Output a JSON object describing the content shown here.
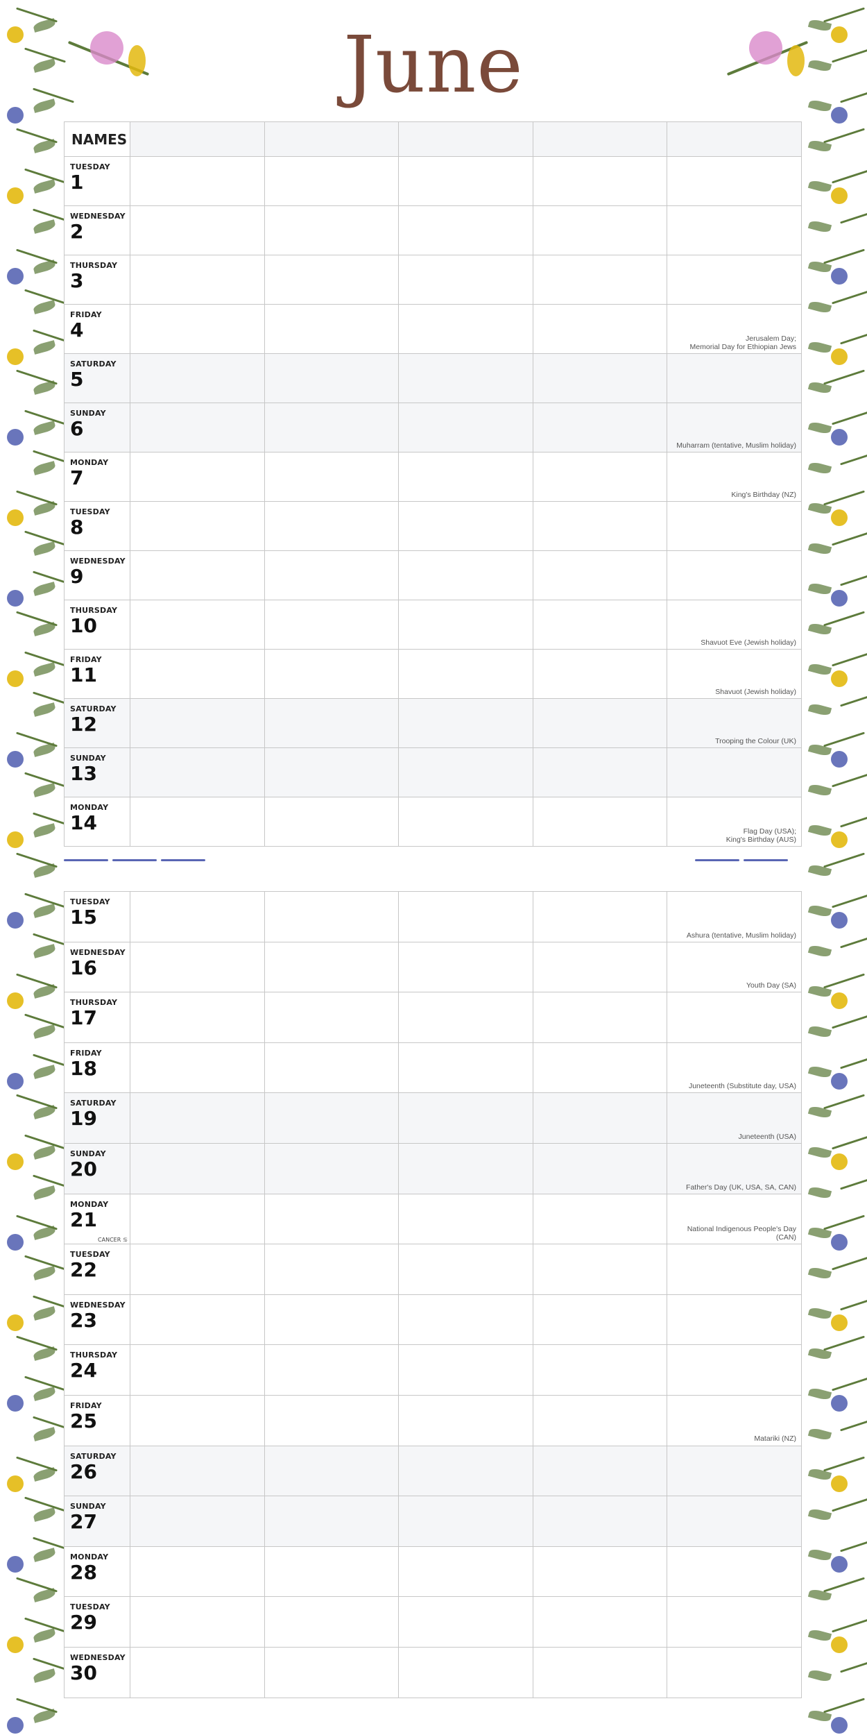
{
  "calendar": {
    "month": "June",
    "names_header": "NAMES"
  },
  "days": [
    {
      "weekday": "TUESDAY",
      "day": "1",
      "event": "",
      "weekend": false
    },
    {
      "weekday": "WEDNESDAY",
      "day": "2",
      "event": "",
      "weekend": false
    },
    {
      "weekday": "THURSDAY",
      "day": "3",
      "event": "",
      "weekend": false
    },
    {
      "weekday": "FRIDAY",
      "day": "4",
      "event": "Jerusalem Day;\nMemorial Day for Ethiopian Jews",
      "weekend": false
    },
    {
      "weekday": "SATURDAY",
      "day": "5",
      "event": "",
      "weekend": true
    },
    {
      "weekday": "SUNDAY",
      "day": "6",
      "event": "Muharram (tentative, Muslim holiday)",
      "weekend": true
    },
    {
      "weekday": "MONDAY",
      "day": "7",
      "event": "King's Birthday (NZ)",
      "weekend": false
    },
    {
      "weekday": "TUESDAY",
      "day": "8",
      "event": "",
      "weekend": false
    },
    {
      "weekday": "WEDNESDAY",
      "day": "9",
      "event": "",
      "weekend": false
    },
    {
      "weekday": "THURSDAY",
      "day": "10",
      "event": "Shavuot Eve (Jewish holiday)",
      "weekend": false
    },
    {
      "weekday": "FRIDAY",
      "day": "11",
      "event": "Shavuot (Jewish holiday)",
      "weekend": false
    },
    {
      "weekday": "SATURDAY",
      "day": "12",
      "event": "Trooping the Colour (UK)",
      "weekend": true
    },
    {
      "weekday": "SUNDAY",
      "day": "13",
      "event": "",
      "weekend": true
    },
    {
      "weekday": "MONDAY",
      "day": "14",
      "event": "Flag Day (USA);\nKing's Birthday (AUS)",
      "weekend": false
    },
    {
      "weekday": "TUESDAY",
      "day": "15",
      "event": "Ashura (tentative, Muslim holiday)",
      "weekend": false
    },
    {
      "weekday": "WEDNESDAY",
      "day": "16",
      "event": "Youth Day (SA)",
      "weekend": false
    },
    {
      "weekday": "THURSDAY",
      "day": "17",
      "event": "",
      "weekend": false
    },
    {
      "weekday": "FRIDAY",
      "day": "18",
      "event": "Juneteenth (Substitute day, USA)",
      "weekend": false
    },
    {
      "weekday": "SATURDAY",
      "day": "19",
      "event": "Juneteenth (USA)",
      "weekend": true
    },
    {
      "weekday": "SUNDAY",
      "day": "20",
      "event": "Father's Day (UK, USA, SA, CAN)",
      "weekend": true
    },
    {
      "weekday": "MONDAY",
      "day": "21",
      "event": "National Indigenous People's Day (CAN)",
      "weekend": false,
      "zodiac": "CANCER ♋"
    },
    {
      "weekday": "TUESDAY",
      "day": "22",
      "event": "",
      "weekend": false
    },
    {
      "weekday": "WEDNESDAY",
      "day": "23",
      "event": "",
      "weekend": false
    },
    {
      "weekday": "THURSDAY",
      "day": "24",
      "event": "",
      "weekend": false
    },
    {
      "weekday": "FRIDAY",
      "day": "25",
      "event": "Matariki (NZ)",
      "weekend": false
    },
    {
      "weekday": "SATURDAY",
      "day": "26",
      "event": "",
      "weekend": true
    },
    {
      "weekday": "SUNDAY",
      "day": "27",
      "event": "",
      "weekend": true
    },
    {
      "weekday": "MONDAY",
      "day": "28",
      "event": "",
      "weekend": false
    },
    {
      "weekday": "TUESDAY",
      "day": "29",
      "event": "",
      "weekend": false
    },
    {
      "weekday": "WEDNESDAY",
      "day": "30",
      "event": "",
      "weekend": false
    }
  ],
  "colors": {
    "title": "#7a4a3a",
    "weekend_fill": "#f5f6f8",
    "grid": "#c7c7c7",
    "flower_yellow": "#e3b90f",
    "flower_purple": "#8c5a8c",
    "flower_pink": "#d98acb",
    "leaf_green": "#5d7b3b",
    "lavender_blue": "#5966b4"
  }
}
